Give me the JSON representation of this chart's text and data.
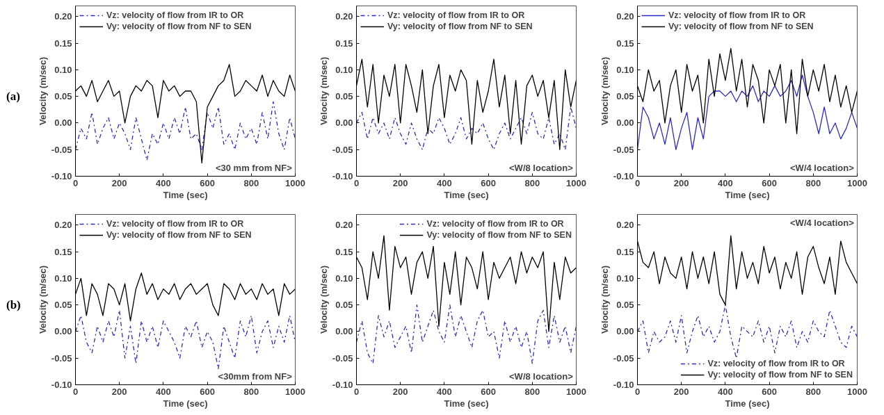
{
  "chart_data": [
    {
      "type": "line",
      "xlabel": "Time (sec)",
      "ylabel": "Velocity (m/sec)",
      "annotations": [
        "(a)",
        "<30 mm from NF>"
      ],
      "legend": "top left",
      "xlim": [
        0,
        1000
      ],
      "ylim": [
        -0.1,
        0.22
      ],
      "xticks": [
        0,
        200,
        400,
        600,
        800,
        1000
      ],
      "yticks": [
        {
          "value": -0.1,
          "label": "-0.10"
        },
        {
          "value": -0.05,
          "label": "-0.05"
        },
        {
          "value": 0,
          "label": "0.00"
        },
        {
          "value": 0.05,
          "label": "0.05"
        },
        {
          "value": 0.1,
          "label": "0.10"
        },
        {
          "value": 0.15,
          "label": "0.15"
        },
        {
          "value": 0.2,
          "label": "0.20"
        }
      ],
      "x": [
        0,
        25,
        50,
        75,
        100,
        125,
        150,
        175,
        200,
        225,
        250,
        275,
        300,
        325,
        350,
        375,
        400,
        425,
        450,
        475,
        500,
        525,
        550,
        575,
        600,
        625,
        650,
        675,
        700,
        725,
        750,
        775,
        800,
        825,
        850,
        875,
        900,
        925,
        950,
        975,
        1000
      ],
      "series": [
        {
          "name": "Vz: velocity of flow from IR to OR",
          "color": "#2a2acc",
          "line_style": "dashed",
          "values": [
            -0.05,
            -0.01,
            -0.03,
            0.02,
            -0.04,
            -0.01,
            0.01,
            -0.03,
            0.0,
            -0.02,
            -0.05,
            0.01,
            -0.03,
            -0.07,
            -0.02,
            -0.04,
            0.0,
            -0.03,
            0.01,
            -0.02,
            0.03,
            -0.03,
            -0.02,
            -0.05,
            0.02,
            -0.01,
            0.03,
            -0.04,
            -0.02,
            -0.05,
            0.0,
            -0.03,
            -0.01,
            -0.04,
            0.02,
            -0.03,
            0.04,
            -0.02,
            -0.05,
            0.01,
            -0.03
          ]
        },
        {
          "name": "Vy: velocity of flow from NF to SEN",
          "color": "#000000",
          "line_style": "solid",
          "values": [
            0.06,
            0.07,
            0.05,
            0.08,
            0.04,
            0.06,
            0.08,
            0.05,
            0.06,
            0.0,
            0.05,
            0.07,
            0.06,
            0.08,
            0.07,
            0.01,
            0.08,
            0.06,
            0.07,
            0.05,
            0.06,
            0.06,
            0.04,
            -0.075,
            0.03,
            0.05,
            0.07,
            0.08,
            0.11,
            0.05,
            0.06,
            0.08,
            0.07,
            0.06,
            0.09,
            0.05,
            0.08,
            0.06,
            0.05,
            0.09,
            0.06
          ]
        }
      ]
    },
    {
      "type": "line",
      "xlabel": "Time (sec)",
      "ylabel": "Velocity (m/sec)",
      "annotations": [
        "<W/8 location>"
      ],
      "legend": "top left",
      "xlim": [
        0,
        1000
      ],
      "ylim": [
        -0.1,
        0.22
      ],
      "xticks": [
        0,
        200,
        400,
        600,
        800,
        1000
      ],
      "yticks": [
        {
          "value": -0.1,
          "label": "-0.10"
        },
        {
          "value": -0.05,
          "label": "-0.05"
        },
        {
          "value": 0,
          "label": "0.00"
        },
        {
          "value": 0.05,
          "label": "0.05"
        },
        {
          "value": 0.1,
          "label": "0.10"
        },
        {
          "value": 0.15,
          "label": "0.15"
        },
        {
          "value": 0.2,
          "label": "0.20"
        }
      ],
      "x": [
        0,
        25,
        50,
        75,
        100,
        125,
        150,
        175,
        200,
        225,
        250,
        275,
        300,
        325,
        350,
        375,
        400,
        425,
        450,
        475,
        500,
        525,
        550,
        575,
        600,
        625,
        650,
        675,
        700,
        725,
        750,
        775,
        800,
        825,
        850,
        875,
        900,
        925,
        950,
        975,
        1000
      ],
      "series": [
        {
          "name": "Vz: velocity of flow from IR to OR",
          "color": "#2a2acc",
          "line_style": "dashed",
          "values": [
            0.0,
            0.02,
            -0.03,
            0.01,
            -0.02,
            0.0,
            -0.03,
            0.01,
            -0.02,
            -0.04,
            0.0,
            -0.03,
            -0.05,
            -0.01,
            -0.02,
            0.01,
            -0.01,
            -0.04,
            -0.02,
            0.01,
            -0.03,
            -0.01,
            -0.02,
            0.0,
            -0.03,
            -0.05,
            -0.02,
            0.0,
            -0.03,
            -0.01,
            0.01,
            -0.02,
            0.02,
            -0.02,
            -0.03,
            0.01,
            -0.04,
            -0.02,
            -0.05,
            0.03,
            -0.01
          ]
        },
        {
          "name": "Vy: velocity of flow from NF to SEN",
          "color": "#000000",
          "line_style": "solid",
          "values": [
            0.07,
            0.12,
            0.03,
            0.11,
            0.0,
            0.09,
            0.05,
            0.11,
            0.0,
            0.11,
            0.07,
            0.02,
            0.1,
            -0.02,
            0.07,
            0.11,
            0.01,
            0.09,
            0.06,
            0.1,
            0.08,
            -0.04,
            0.08,
            0.02,
            0.06,
            0.12,
            0.03,
            0.09,
            -0.02,
            0.08,
            -0.04,
            0.07,
            0.09,
            0.05,
            0.08,
            0.01,
            0.08,
            -0.05,
            0.1,
            0.03,
            0.08
          ]
        }
      ]
    },
    {
      "type": "line",
      "xlabel": "Time (sec)",
      "ylabel": "Velocity (m/sec)",
      "annotations": [
        "<W/4 location>"
      ],
      "legend": "top left",
      "xlim": [
        0,
        1000
      ],
      "ylim": [
        -0.1,
        0.22
      ],
      "xticks": [
        0,
        200,
        400,
        600,
        800,
        1000
      ],
      "yticks": [
        {
          "value": -0.1,
          "label": "-0.10"
        },
        {
          "value": -0.05,
          "label": "-0.05"
        },
        {
          "value": 0,
          "label": "0.00"
        },
        {
          "value": 0.05,
          "label": "0.05"
        },
        {
          "value": 0.1,
          "label": "0.10"
        },
        {
          "value": 0.15,
          "label": "0.15"
        },
        {
          "value": 0.2,
          "label": "0.20"
        }
      ],
      "x": [
        0,
        25,
        50,
        75,
        100,
        125,
        150,
        175,
        200,
        225,
        250,
        275,
        300,
        325,
        350,
        375,
        400,
        425,
        450,
        475,
        500,
        525,
        550,
        575,
        600,
        625,
        650,
        675,
        700,
        725,
        750,
        775,
        800,
        825,
        850,
        875,
        900,
        925,
        950,
        975,
        1000
      ],
      "series": [
        {
          "name": "Vz: velocity of flow from IR to OR",
          "color": "#2a2acc",
          "line_style": "solid",
          "values": [
            -0.05,
            0.03,
            0.01,
            -0.03,
            0.0,
            -0.04,
            0.01,
            -0.05,
            -0.01,
            0.02,
            -0.05,
            0.01,
            -0.03,
            0.05,
            0.06,
            0.06,
            0.05,
            0.06,
            0.04,
            0.06,
            0.05,
            0.07,
            0.04,
            0.06,
            0.05,
            0.07,
            0.05,
            0.06,
            0.08,
            0.05,
            0.09,
            0.05,
            0.02,
            -0.02,
            0.03,
            -0.02,
            0.0,
            -0.03,
            -0.01,
            0.02,
            -0.01
          ]
        },
        {
          "name": "Vy: velocity of flow from NF to SEN",
          "color": "#000000",
          "line_style": "solid",
          "values": [
            0.07,
            0.04,
            0.1,
            0.06,
            0.08,
            0.0,
            0.07,
            0.1,
            0.02,
            0.11,
            0.06,
            0.09,
            0.0,
            0.12,
            0.05,
            0.13,
            0.08,
            0.14,
            0.06,
            0.12,
            0.03,
            0.11,
            0.08,
            0.0,
            0.1,
            0.07,
            0.11,
            0.0,
            0.1,
            -0.02,
            0.12,
            0.05,
            0.1,
            0.06,
            0.11,
            0.04,
            0.09,
            0.03,
            0.07,
            0.02,
            0.06
          ]
        }
      ]
    },
    {
      "type": "line",
      "xlabel": "Time (sec)",
      "ylabel": "Velocity (m/sec)",
      "annotations": [
        "(b)",
        "<30mm from NF>"
      ],
      "legend": "top left",
      "xlim": [
        0,
        1000
      ],
      "ylim": [
        -0.1,
        0.22
      ],
      "xticks": [
        0,
        200,
        400,
        600,
        800,
        1000
      ],
      "yticks": [
        {
          "value": -0.1,
          "label": "-0.10"
        },
        {
          "value": -0.05,
          "label": "-0.05"
        },
        {
          "value": 0,
          "label": "0.00"
        },
        {
          "value": 0.05,
          "label": "0.05"
        },
        {
          "value": 0.1,
          "label": "0.10"
        },
        {
          "value": 0.15,
          "label": "0.15"
        },
        {
          "value": 0.2,
          "label": "0.20"
        }
      ],
      "x": [
        0,
        25,
        50,
        75,
        100,
        125,
        150,
        175,
        200,
        225,
        250,
        275,
        300,
        325,
        350,
        375,
        400,
        425,
        450,
        475,
        500,
        525,
        550,
        575,
        600,
        625,
        650,
        675,
        700,
        725,
        750,
        775,
        800,
        825,
        850,
        875,
        900,
        925,
        950,
        975,
        1000
      ],
      "series": [
        {
          "name": "Vz: velocity of flow from IR to OR",
          "color": "#2a2acc",
          "line_style": "dashed",
          "values": [
            0.0,
            0.03,
            -0.02,
            -0.04,
            0.01,
            -0.02,
            0.02,
            -0.01,
            0.04,
            -0.05,
            0.01,
            -0.06,
            0.02,
            -0.02,
            0.01,
            -0.03,
            0.02,
            0.0,
            -0.02,
            -0.05,
            0.01,
            -0.01,
            0.02,
            -0.03,
            0.0,
            -0.02,
            -0.07,
            0.01,
            -0.02,
            -0.05,
            0.02,
            -0.01,
            0.03,
            -0.04,
            0.0,
            0.02,
            -0.03,
            0.01,
            -0.02,
            0.03,
            -0.02
          ]
        },
        {
          "name": "Vy: velocity of flow from NF to SEN",
          "color": "#000000",
          "line_style": "solid",
          "values": [
            0.07,
            0.1,
            0.03,
            0.09,
            0.07,
            0.03,
            0.09,
            0.08,
            0.05,
            0.09,
            0.02,
            0.08,
            0.11,
            0.07,
            0.09,
            0.06,
            0.08,
            0.07,
            0.09,
            0.06,
            0.08,
            0.09,
            0.07,
            0.08,
            0.09,
            0.05,
            0.03,
            0.09,
            0.08,
            0.06,
            0.09,
            0.07,
            0.08,
            0.06,
            0.09,
            0.07,
            0.08,
            0.03,
            0.09,
            0.07,
            0.08
          ]
        }
      ]
    },
    {
      "type": "line",
      "xlabel": "Time (sec)",
      "ylabel": "Velocity (m/sec)",
      "annotations": [
        "<W/8 location>"
      ],
      "legend": "top right",
      "xlim": [
        0,
        1000
      ],
      "ylim": [
        -0.1,
        0.22
      ],
      "xticks": [
        0,
        200,
        400,
        600,
        800,
        1000
      ],
      "yticks": [
        {
          "value": -0.1,
          "label": "-0.10"
        },
        {
          "value": -0.05,
          "label": "-0.05"
        },
        {
          "value": 0,
          "label": "0.00"
        },
        {
          "value": 0.05,
          "label": "0.05"
        },
        {
          "value": 0.1,
          "label": "0.10"
        },
        {
          "value": 0.15,
          "label": "0.15"
        },
        {
          "value": 0.2,
          "label": "0.20"
        }
      ],
      "x": [
        0,
        25,
        50,
        75,
        100,
        125,
        150,
        175,
        200,
        225,
        250,
        275,
        300,
        325,
        350,
        375,
        400,
        425,
        450,
        475,
        500,
        525,
        550,
        575,
        600,
        625,
        650,
        675,
        700,
        725,
        750,
        775,
        800,
        825,
        850,
        875,
        900,
        925,
        950,
        975,
        1000
      ],
      "series": [
        {
          "name": "Vz: velocity of flow from IR to OR",
          "color": "#2a2acc",
          "line_style": "dashed",
          "values": [
            -0.02,
            0.02,
            -0.04,
            -0.06,
            0.03,
            -0.01,
            0.02,
            -0.03,
            -0.01,
            0.01,
            -0.04,
            0.05,
            -0.02,
            0.01,
            0.04,
            0.0,
            -0.02,
            0.05,
            -0.01,
            0.03,
            0.0,
            -0.03,
            0.02,
            0.04,
            -0.01,
            0.0,
            -0.05,
            0.02,
            -0.02,
            0.01,
            -0.03,
            0.0,
            -0.06,
            0.02,
            0.04,
            -0.03,
            0.03,
            -0.02,
            0.01,
            -0.04,
            0.01
          ]
        },
        {
          "name": "Vy: velocity of flow from NF to SEN",
          "color": "#000000",
          "line_style": "solid",
          "values": [
            0.14,
            0.12,
            0.06,
            0.15,
            0.1,
            0.18,
            0.04,
            0.16,
            0.12,
            0.14,
            0.07,
            0.13,
            0.15,
            0.1,
            0.16,
            0.01,
            0.13,
            0.07,
            0.15,
            0.05,
            0.14,
            0.12,
            0.08,
            0.15,
            0.06,
            0.13,
            0.1,
            0.12,
            0.14,
            0.09,
            0.15,
            0.11,
            0.14,
            0.12,
            0.15,
            0.0,
            0.13,
            0.06,
            0.14,
            0.11,
            0.12
          ]
        }
      ]
    },
    {
      "type": "line",
      "xlabel": "Time (sec)",
      "ylabel": "Velocity (m/sec)",
      "annotations": [
        "<W/4 location>"
      ],
      "legend": "bottom right",
      "xlim": [
        0,
        1000
      ],
      "ylim": [
        -0.1,
        0.22
      ],
      "xticks": [
        0,
        200,
        400,
        600,
        800,
        1000
      ],
      "yticks": [
        {
          "value": -0.1,
          "label": "-0.10"
        },
        {
          "value": -0.05,
          "label": "-0.05"
        },
        {
          "value": 0,
          "label": "0.00"
        },
        {
          "value": 0.05,
          "label": "0.05"
        },
        {
          "value": 0.1,
          "label": "0.10"
        },
        {
          "value": 0.15,
          "label": "0.15"
        },
        {
          "value": 0.2,
          "label": "0.20"
        }
      ],
      "x": [
        0,
        25,
        50,
        75,
        100,
        125,
        150,
        175,
        200,
        225,
        250,
        275,
        300,
        325,
        350,
        375,
        400,
        425,
        450,
        475,
        500,
        525,
        550,
        575,
        600,
        625,
        650,
        675,
        700,
        725,
        750,
        775,
        800,
        825,
        850,
        875,
        900,
        925,
        950,
        975,
        1000
      ],
      "series": [
        {
          "name": "Vz: velocity of flow from IR to OR",
          "color": "#2a2acc",
          "line_style": "dashed",
          "values": [
            0.0,
            0.02,
            -0.04,
            0.0,
            -0.02,
            -0.01,
            0.02,
            -0.02,
            0.03,
            -0.04,
            0.0,
            0.03,
            -0.01,
            0.01,
            -0.02,
            0.0,
            0.05,
            -0.01,
            -0.05,
            0.01,
            0.0,
            -0.01,
            0.02,
            -0.02,
            0.01,
            -0.04,
            0.01,
            -0.01,
            0.02,
            -0.03,
            0.0,
            -0.02,
            0.02,
            0.0,
            -0.01,
            0.04,
            0.01,
            -0.02,
            -0.03,
            0.01,
            -0.01
          ]
        },
        {
          "name": "Vy: velocity of flow from NF to SEN",
          "color": "#000000",
          "line_style": "solid",
          "values": [
            0.17,
            0.13,
            0.12,
            0.15,
            0.09,
            0.14,
            0.11,
            0.1,
            0.14,
            0.08,
            0.15,
            0.1,
            0.14,
            0.09,
            0.15,
            0.07,
            0.05,
            0.18,
            0.08,
            0.15,
            0.1,
            0.13,
            0.09,
            0.16,
            0.11,
            0.14,
            0.08,
            0.13,
            0.1,
            0.15,
            0.07,
            0.14,
            0.16,
            0.12,
            0.09,
            0.14,
            0.07,
            0.17,
            0.13,
            0.11,
            0.09
          ]
        }
      ]
    }
  ]
}
